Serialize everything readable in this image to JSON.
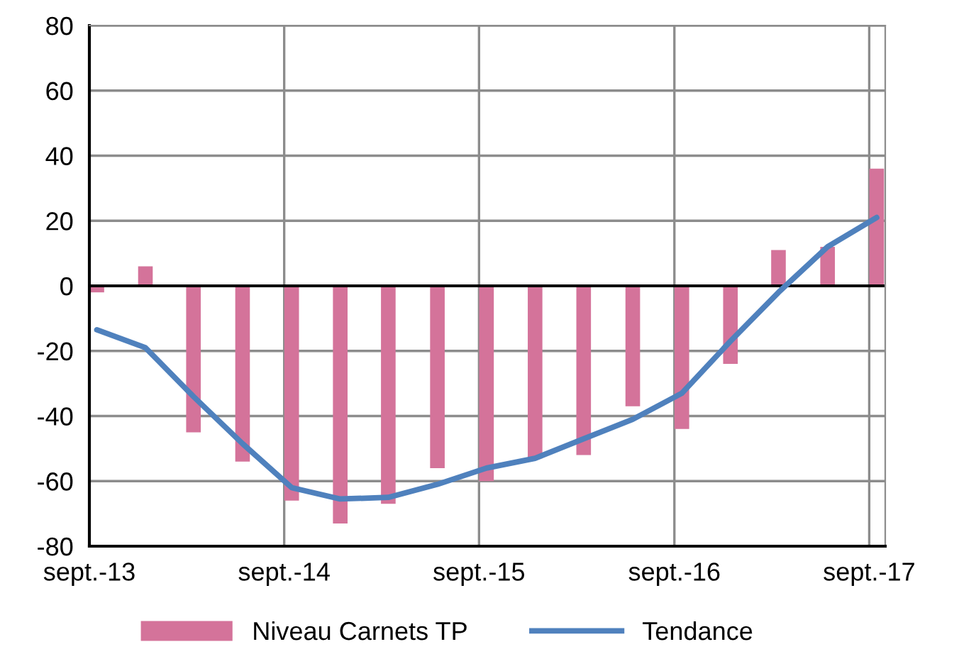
{
  "chart_data": {
    "type": "bar",
    "x": [
      "2013-09-15",
      "2013-12-15",
      "2014-03-15",
      "2014-06-15",
      "2014-09-15",
      "2014-12-15",
      "2015-03-15",
      "2015-06-15",
      "2015-09-15",
      "2015-12-15",
      "2016-03-15",
      "2016-06-15",
      "2016-09-15",
      "2016-12-15",
      "2017-03-15",
      "2017-06-15",
      "2017-09-15"
    ],
    "series": [
      {
        "name": "Niveau Carnets TP",
        "color": "#d4739a",
        "values": [
          -2,
          6,
          -45,
          -54,
          -66,
          -73,
          -67,
          -56,
          -60,
          -53,
          -52,
          -37,
          -44,
          -24,
          11,
          12,
          36
        ]
      },
      {
        "name": "Tendance",
        "type": "line",
        "color": "#4f81bd",
        "values": [
          -13.5,
          -19,
          -34,
          -48.5,
          -62,
          -65.5,
          -65,
          -61,
          -56,
          -53,
          -47,
          -41,
          -33,
          -17,
          -2,
          12,
          21
        ]
      }
    ],
    "xlim": [
      "2013-09-01",
      "2017-10-01"
    ],
    "xticks": [
      {
        "value": "2013-09-01",
        "label": "sept.-13"
      },
      {
        "value": "2014-09-01",
        "label": "sept.-14"
      },
      {
        "value": "2015-09-01",
        "label": "sept.-15"
      },
      {
        "value": "2016-09-01",
        "label": "sept.-16"
      },
      {
        "value": "2017-09-01",
        "label": "sept.-17"
      }
    ],
    "ylim": [
      -80,
      80
    ],
    "yticks": [
      -80,
      -60,
      -40,
      -20,
      0,
      20,
      40,
      60,
      80
    ],
    "ref_lines": [
      {
        "axis": "y",
        "value": 0,
        "color": "#000000"
      }
    ],
    "grid": true,
    "legend": "bottom",
    "line_style": "solid",
    "marker": "none"
  }
}
